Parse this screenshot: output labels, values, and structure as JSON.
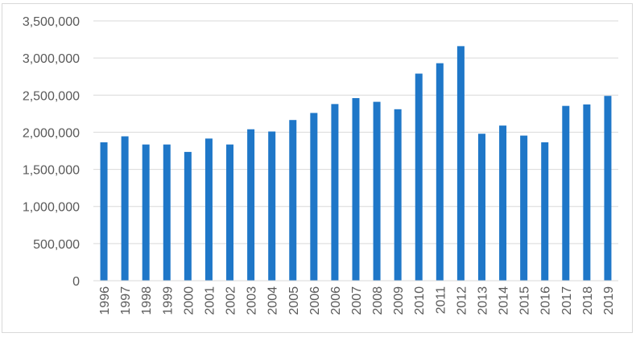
{
  "chart_data": {
    "type": "bar",
    "title": "",
    "xlabel": "",
    "ylabel": "",
    "categories": [
      "1996",
      "1997",
      "1998",
      "1999",
      "2000",
      "2001",
      "2002",
      "2003",
      "2004",
      "2005",
      "2006",
      "2006",
      "2007",
      "2008",
      "2009",
      "2010",
      "2011",
      "2012",
      "2013",
      "2014",
      "2015",
      "2016",
      "2017",
      "2018",
      "2019"
    ],
    "values": [
      1865000,
      1945000,
      1835000,
      1835000,
      1735000,
      1915000,
      1835000,
      2040000,
      2010000,
      2165000,
      2260000,
      2380000,
      2460000,
      2410000,
      2310000,
      2790000,
      2930000,
      3160000,
      1980000,
      2090000,
      1955000,
      1865000,
      2355000,
      2375000,
      2490000
    ],
    "ylim": [
      0,
      3500000
    ],
    "yticks": [
      0,
      500000,
      1000000,
      1500000,
      2000000,
      2500000,
      3000000,
      3500000
    ],
    "ytick_labels": [
      "0",
      "500,000",
      "1,000,000",
      "1,500,000",
      "2,000,000",
      "2,500,000",
      "3,000,000",
      "3,500,000"
    ],
    "grid": true,
    "legend": "none",
    "bar_color": "#1f77c8"
  }
}
